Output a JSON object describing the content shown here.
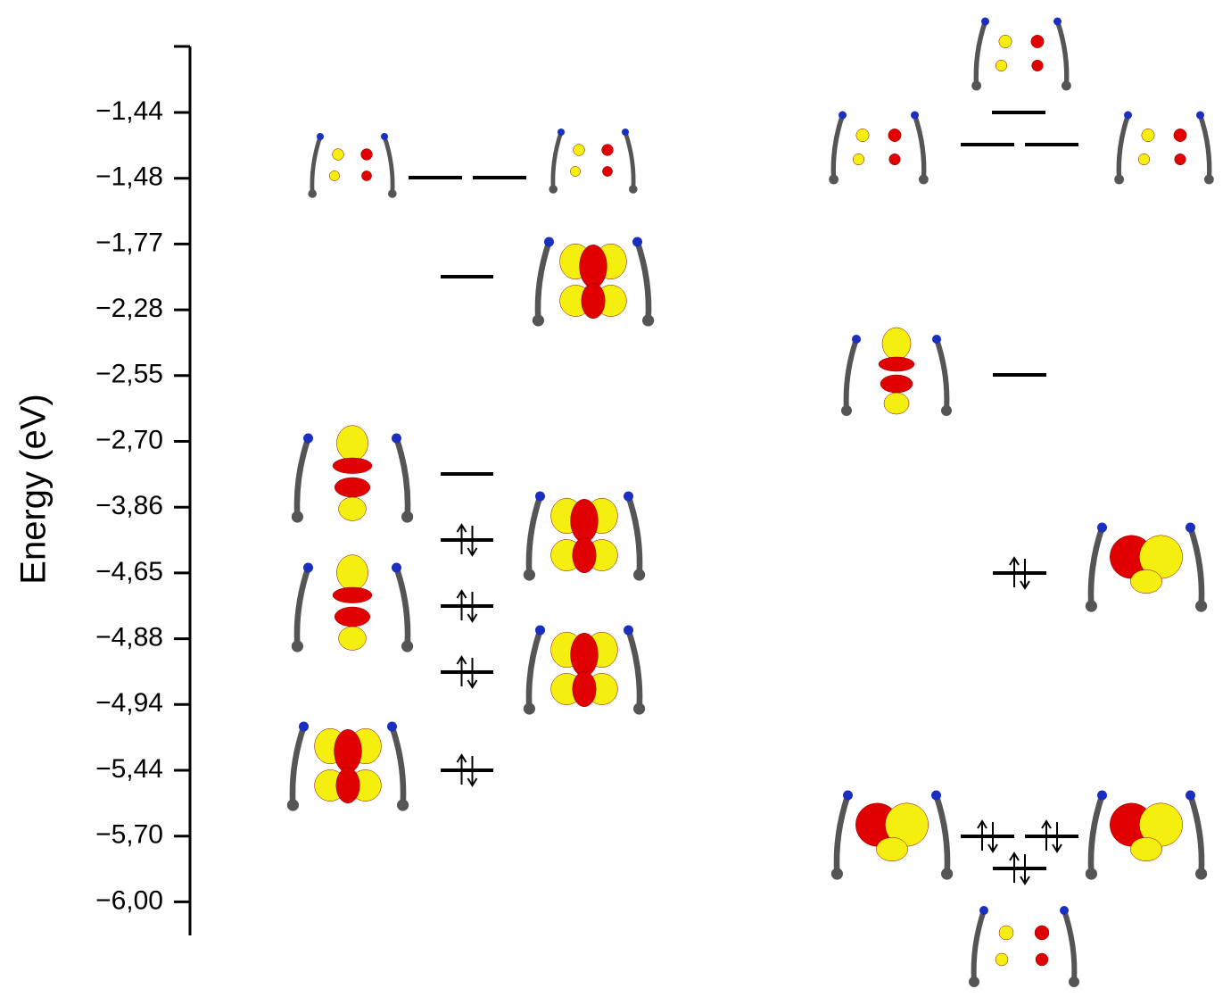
{
  "axis": {
    "label": "Energy (eV)",
    "ticks": [
      "−1,44",
      "−1,48",
      "−1,77",
      "−2,28",
      "−2,55",
      "−2,70",
      "−3,86",
      "−4,65",
      "−4,88",
      "−4,94",
      "−5,44",
      "−5,70",
      "−6,00"
    ]
  }
}
